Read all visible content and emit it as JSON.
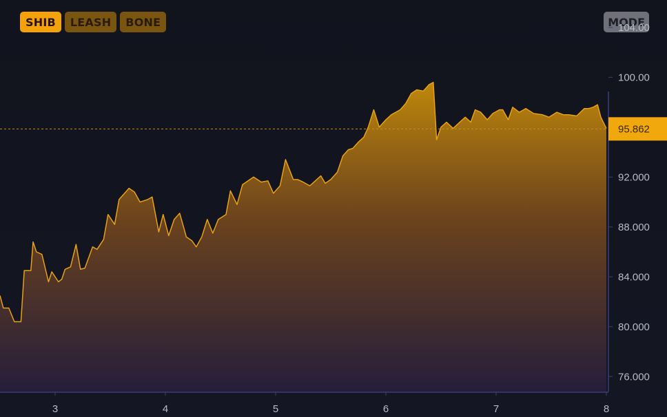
{
  "tabs": [
    {
      "label": "SHIB",
      "active": true
    },
    {
      "label": "LEASH",
      "active": false
    },
    {
      "label": "BONE",
      "active": false
    }
  ],
  "mode_label": "MODE",
  "colors": {
    "accent": "#f4a10a",
    "line": "#e8a212",
    "price_tag": "#f0a80c"
  },
  "chart_data": {
    "type": "area",
    "title": "",
    "xlabel": "",
    "ylabel": "",
    "xlim": [
      2.5,
      8.0
    ],
    "ylim": [
      74.8,
      106.2
    ],
    "x_ticks": [
      3,
      4,
      5,
      6,
      7,
      8
    ],
    "x_tick_labels": [
      "3",
      "4",
      "5",
      "6",
      "7",
      "8"
    ],
    "y_ticks": [
      76,
      80,
      84,
      88,
      92,
      96,
      100,
      104
    ],
    "y_tick_labels": [
      "76.000",
      "80.000",
      "84.000",
      "88.000",
      "92.000",
      "",
      "100.00",
      "104.00"
    ],
    "current_price": 95.862,
    "current_price_label": "95.862",
    "grid": false,
    "series": [
      {
        "x": [
          2.5,
          2.53,
          2.58,
          2.63,
          2.69,
          2.72,
          2.78,
          2.8,
          2.83,
          2.88,
          2.94,
          2.97,
          3.03,
          3.06,
          3.09,
          3.14,
          3.19,
          3.23,
          3.27,
          3.34,
          3.38,
          3.44,
          3.48,
          3.54,
          3.58,
          3.63,
          3.67,
          3.72,
          3.77,
          3.84,
          3.88,
          3.94,
          3.98,
          4.03,
          4.08,
          4.13,
          4.19,
          4.24,
          4.28,
          4.33,
          4.38,
          4.43,
          4.48,
          4.55,
          4.59,
          4.65,
          4.7,
          4.75,
          4.8,
          4.87,
          4.93,
          4.98,
          5.04,
          5.09,
          5.16,
          5.2,
          5.25,
          5.31,
          5.36,
          5.41,
          5.45,
          5.5,
          5.56,
          5.61,
          5.66,
          5.7,
          5.75,
          5.8,
          5.84,
          5.89,
          5.94,
          6.0,
          6.05,
          6.13,
          6.18,
          6.23,
          6.28,
          6.34,
          6.39,
          6.43,
          6.46,
          6.5,
          6.55,
          6.61,
          6.67,
          6.72,
          6.77,
          6.81,
          6.86,
          6.92,
          6.97,
          7.03,
          7.06,
          7.11,
          7.15,
          7.21,
          7.27,
          7.34,
          7.42,
          7.48,
          7.55,
          7.61,
          7.66,
          7.73,
          7.8,
          7.84,
          7.88,
          7.92,
          7.95,
          8.0
        ],
        "y": [
          82.5,
          81.5,
          81.5,
          80.4,
          80.4,
          84.5,
          84.5,
          86.8,
          86.0,
          85.8,
          83.6,
          84.4,
          83.6,
          83.8,
          84.6,
          84.8,
          86.6,
          84.6,
          84.7,
          86.4,
          86.2,
          87.0,
          89.0,
          88.2,
          90.2,
          90.7,
          91.1,
          90.8,
          90.0,
          90.2,
          90.4,
          87.6,
          89.0,
          87.3,
          88.6,
          89.1,
          87.2,
          86.9,
          86.4,
          87.2,
          88.6,
          87.5,
          88.6,
          89.0,
          90.9,
          89.8,
          91.4,
          91.7,
          92.0,
          91.6,
          91.7,
          90.7,
          91.3,
          93.4,
          91.8,
          91.8,
          91.6,
          91.3,
          91.7,
          92.1,
          91.5,
          91.8,
          92.4,
          93.7,
          94.2,
          94.3,
          94.8,
          95.2,
          96.0,
          97.4,
          96.0,
          96.6,
          97.0,
          97.4,
          97.9,
          98.7,
          99.0,
          98.9,
          99.4,
          99.6,
          95.0,
          96.0,
          96.4,
          95.9,
          96.4,
          96.8,
          96.4,
          97.4,
          97.2,
          96.6,
          97.1,
          97.4,
          97.4,
          96.6,
          97.6,
          97.2,
          97.5,
          97.1,
          97.0,
          96.8,
          97.2,
          97.0,
          97.0,
          96.9,
          97.5,
          97.5,
          97.6,
          97.8,
          96.8,
          95.9
        ]
      }
    ]
  }
}
